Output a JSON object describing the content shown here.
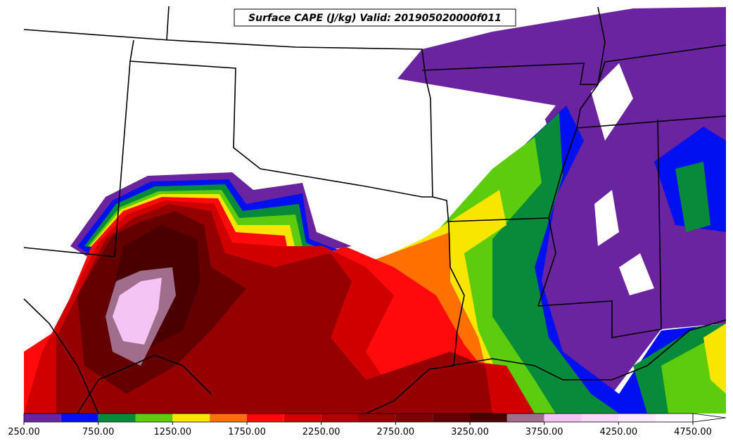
{
  "map": {
    "title": "Surface CAPE (J/kg) Valid: 201905020000f011",
    "colorbar": {
      "levels": [
        250,
        500,
        750,
        1000,
        1250,
        1500,
        1750,
        2000,
        2250,
        2500,
        2750,
        3000,
        3250,
        3500,
        3750,
        4000,
        4250,
        4500,
        4750
      ],
      "colors": [
        "#6a24a0",
        "#0010f0",
        "#078a3a",
        "#5ccc0c",
        "#f8e600",
        "#ff7000",
        "#ff0a0a",
        "#d00000",
        "#b00000",
        "#960000",
        "#7e0000",
        "#650000",
        "#4a0000",
        "#a06e8c",
        "#f4c4f4",
        "#f8d8f8",
        "#fbe8fb",
        "#fff6ff"
      ],
      "ticks": [
        {
          "value": 250,
          "label": "250.00"
        },
        {
          "value": 750,
          "label": "750.00"
        },
        {
          "value": 1250,
          "label": "1250.00"
        },
        {
          "value": 1750,
          "label": "1750.00"
        },
        {
          "value": 2250,
          "label": "2250.00"
        },
        {
          "value": 2750,
          "label": "2750.00"
        },
        {
          "value": 3250,
          "label": "3250.00"
        },
        {
          "value": 3750,
          "label": "3750.00"
        },
        {
          "value": 4250,
          "label": "4250.00"
        },
        {
          "value": 4750,
          "label": "4750.00"
        }
      ]
    }
  }
}
